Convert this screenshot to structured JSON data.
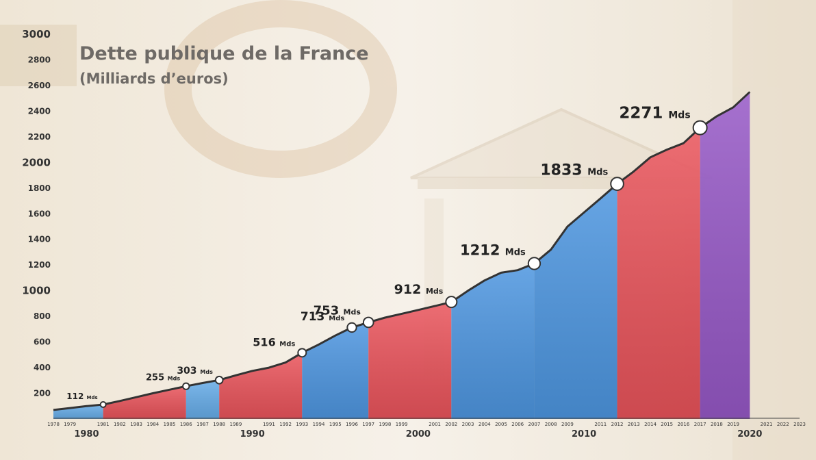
{
  "title": "Dette publique de la France",
  "subtitle": "(Milliards d’euros)",
  "chart_data": {
    "type": "area",
    "title": "Dette publique de la France",
    "ylabel": "(Milliards d’euros)",
    "xlim": [
      1978,
      2023
    ],
    "ylim": [
      0,
      3000
    ],
    "yticks": [
      200,
      400,
      600,
      800,
      1000,
      1200,
      1400,
      1600,
      1800,
      2000,
      2200,
      2400,
      2600,
      2800,
      3000
    ],
    "yticks_major": [
      1000,
      2000,
      3000
    ],
    "xtick_years": [
      1978,
      1979,
      1981,
      1982,
      1983,
      1984,
      1985,
      1986,
      1987,
      1988,
      1989,
      1991,
      1992,
      1993,
      1994,
      1995,
      1996,
      1997,
      1998,
      1999,
      2001,
      2002,
      2003,
      2004,
      2005,
      2006,
      2007,
      2008,
      2009,
      2011,
      2012,
      2013,
      2014,
      2015,
      2016,
      2017,
      2018,
      2019,
      2021,
      2022,
      2023
    ],
    "xtick_major": [
      1980,
      1990,
      2000,
      2010,
      2020
    ],
    "series": [
      {
        "x": [
          1978,
          1979,
          1980,
          1981,
          1982,
          1983,
          1984,
          1985,
          1986,
          1987,
          1988,
          1989,
          1990,
          1991,
          1992,
          1993,
          1994,
          1995,
          1996,
          1997,
          1998,
          1999,
          2000,
          2001,
          2002,
          2003,
          2004,
          2005,
          2006,
          2007,
          2008,
          2009,
          2010,
          2011,
          2012,
          2013,
          2014,
          2015,
          2016,
          2017,
          2018,
          2019,
          2020
        ],
        "values": [
          70,
          85,
          100,
          112,
          140,
          170,
          200,
          228,
          255,
          280,
          303,
          340,
          375,
          400,
          440,
          516,
          580,
          650,
          713,
          753,
          790,
          820,
          850,
          880,
          912,
          1000,
          1080,
          1140,
          1160,
          1212,
          1320,
          1500,
          1610,
          1720,
          1833,
          1930,
          2040,
          2100,
          2150,
          2271,
          2360,
          2430,
          2550
        ]
      }
    ],
    "annotations": [
      {
        "year": 1981,
        "value": 112,
        "label": "112",
        "unit": "Mds"
      },
      {
        "year": 1986,
        "value": 255,
        "label": "255",
        "unit": "Mds"
      },
      {
        "year": 1988,
        "value": 303,
        "label": "303",
        "unit": "Mds"
      },
      {
        "year": 1993,
        "value": 516,
        "label": "516",
        "unit": "Mds"
      },
      {
        "year": 1996,
        "value": 713,
        "label": "713",
        "unit": "Mds"
      },
      {
        "year": 1997,
        "value": 753,
        "label": "753",
        "unit": "Mds"
      },
      {
        "year": 2002,
        "value": 912,
        "label": "912",
        "unit": "Mds"
      },
      {
        "year": 2007,
        "value": 1212,
        "label": "1212",
        "unit": "Mds"
      },
      {
        "year": 2012,
        "value": 1833,
        "label": "1833",
        "unit": "Mds"
      },
      {
        "year": 2017,
        "value": 2271,
        "label": "2271",
        "unit": "Mds"
      }
    ],
    "periods": [
      {
        "start": 1978,
        "end": 1981,
        "color": "#5aa6e8"
      },
      {
        "start": 1981,
        "end": 1986,
        "color": "#e8474f"
      },
      {
        "start": 1986,
        "end": 1988,
        "color": "#5aa6e8"
      },
      {
        "start": 1988,
        "end": 1993,
        "color": "#e8474f"
      },
      {
        "start": 1993,
        "end": 1997,
        "color": "#3f8ee0"
      },
      {
        "start": 1997,
        "end": 2002,
        "color": "#e8474f"
      },
      {
        "start": 2002,
        "end": 2007,
        "color": "#3f8ee0"
      },
      {
        "start": 2007,
        "end": 2012,
        "color": "#3f8ee0"
      },
      {
        "start": 2012,
        "end": 2017,
        "color": "#e8474f"
      },
      {
        "start": 2017,
        "end": 2020,
        "color": "#8e4cc4"
      }
    ],
    "colors": {
      "line": "#333333",
      "background": "#f4efe6"
    }
  }
}
